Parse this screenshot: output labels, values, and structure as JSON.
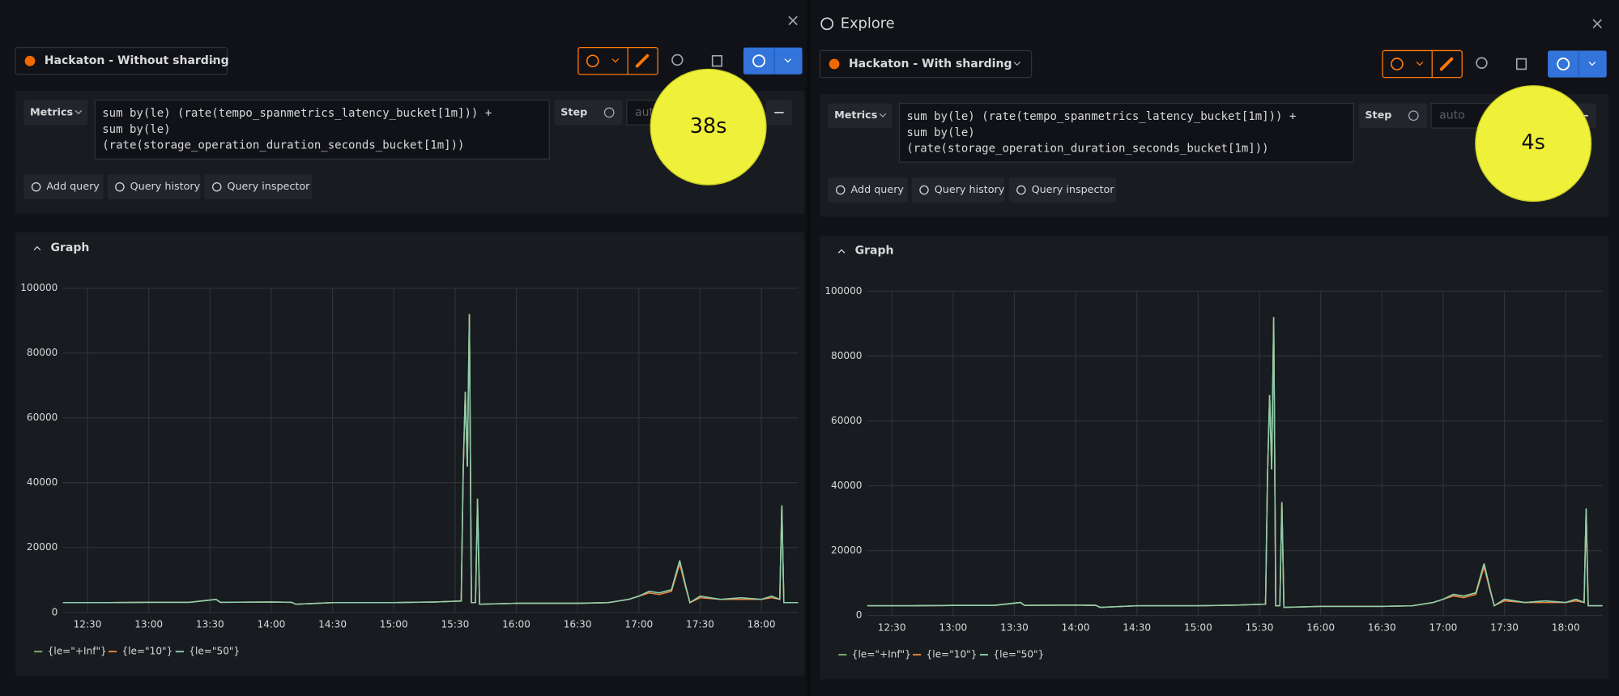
{
  "explore_title": "Explore",
  "panels": [
    {
      "datasource": "Hackaton - Without sharding",
      "query": {
        "type": "Metrics",
        "lines": [
          "sum by(le) (rate(tempo_spanmetrics_latency_bucket[1m])) +",
          "sum by(le)",
          "(rate(storage_operation_duration_seconds_bucket[1m]))"
        ],
        "step_label": "Step",
        "step_placeholder": "auto"
      },
      "actions": [
        "Add query",
        "Query history",
        "Query inspector"
      ],
      "timer": "38s",
      "chart_data": {
        "type": "line",
        "title": "Graph",
        "x": [
          "12:18",
          "12:40",
          "13:00",
          "13:20",
          "13:33",
          "13:35",
          "14:00",
          "14:10",
          "14:12",
          "14:30",
          "15:00",
          "15:20",
          "15:33",
          "15:34",
          "15:35",
          "15:36",
          "15:37",
          "15:38",
          "15:40",
          "15:41",
          "15:42",
          "16:00",
          "16:30",
          "16:45",
          "16:55",
          "17:00",
          "17:05",
          "17:10",
          "17:16",
          "17:20",
          "17:23",
          "17:25",
          "17:30",
          "17:40",
          "17:50",
          "18:00",
          "18:05",
          "18:09",
          "18:10",
          "18:11",
          "18:18"
        ],
        "series": [
          {
            "name": "{le=\"+Inf\"}",
            "color": "#7eb26d",
            "values": [
              3000,
              3000,
              3100,
              3100,
              4000,
              3100,
              3200,
              3100,
              2500,
              3000,
              3000,
              3200,
              3500,
              44000,
              68000,
              45000,
              92000,
              3000,
              3000,
              35000,
              2500,
              2800,
              2800,
              3000,
              4000,
              5000,
              6500,
              6000,
              7000,
              16000,
              8000,
              3000,
              5000,
              4000,
              4500,
              4000,
              5000,
              4000,
              33000,
              3000,
              3000
            ]
          },
          {
            "name": "{le=\"10\"}",
            "color": "#ef843c",
            "values": [
              3000,
              3000,
              3100,
              3100,
              4000,
              3100,
              3200,
              3100,
              2500,
              3000,
              3000,
              3200,
              3500,
              44000,
              68000,
              45000,
              92000,
              3000,
              3000,
              35000,
              2500,
              2800,
              2800,
              3000,
              4000,
              5000,
              6000,
              5500,
              6500,
              15000,
              7500,
              3000,
              4500,
              4000,
              4000,
              4000,
              4500,
              4000,
              33000,
              3000,
              3000
            ]
          },
          {
            "name": "{le=\"50\"}",
            "color": "#8ccfb0",
            "values": [
              3000,
              3000,
              3100,
              3100,
              4000,
              3100,
              3200,
              3100,
              2500,
              3000,
              3000,
              3200,
              3500,
              44000,
              68000,
              45000,
              92000,
              3000,
              3000,
              35000,
              2500,
              2800,
              2800,
              3000,
              4000,
              5000,
              6500,
              6000,
              7000,
              16000,
              8000,
              3000,
              5000,
              4000,
              4500,
              4000,
              5000,
              4000,
              33000,
              3000,
              3000
            ]
          }
        ],
        "xlim": [
          "12:18",
          "18:18"
        ],
        "xticks": [
          "12:30",
          "13:00",
          "13:30",
          "14:00",
          "14:30",
          "15:00",
          "15:30",
          "16:00",
          "16:30",
          "17:00",
          "17:30",
          "18:00"
        ],
        "ylim": [
          0,
          100000
        ],
        "yticks": [
          0,
          20000,
          40000,
          60000,
          80000,
          100000
        ],
        "grid": true
      }
    },
    {
      "datasource": "Hackaton - With sharding",
      "query": {
        "type": "Metrics",
        "lines": [
          "sum by(le) (rate(tempo_spanmetrics_latency_bucket[1m])) +",
          "sum by(le)",
          "(rate(storage_operation_duration_seconds_bucket[1m]))"
        ],
        "step_label": "Step",
        "step_placeholder": "auto"
      },
      "actions": [
        "Add query",
        "Query history",
        "Query inspector"
      ],
      "timer": "4s",
      "chart_data": {
        "type": "line",
        "title": "Graph",
        "x": [
          "12:18",
          "12:40",
          "13:00",
          "13:20",
          "13:33",
          "13:35",
          "14:00",
          "14:10",
          "14:12",
          "14:30",
          "15:00",
          "15:20",
          "15:33",
          "15:34",
          "15:35",
          "15:36",
          "15:37",
          "15:38",
          "15:40",
          "15:41",
          "15:42",
          "16:00",
          "16:30",
          "16:45",
          "16:55",
          "17:00",
          "17:05",
          "17:10",
          "17:16",
          "17:20",
          "17:23",
          "17:25",
          "17:30",
          "17:40",
          "17:50",
          "18:00",
          "18:05",
          "18:09",
          "18:10",
          "18:11",
          "18:18"
        ],
        "series": [
          {
            "name": "{le=\"+Inf\"}",
            "color": "#7eb26d",
            "values": [
              3000,
              3000,
              3100,
              3100,
              4000,
              3100,
              3200,
              3100,
              2500,
              3000,
              3000,
              3200,
              3500,
              44000,
              68000,
              45000,
              92000,
              3000,
              3000,
              35000,
              2500,
              2800,
              2800,
              3000,
              4000,
              5000,
              6500,
              6000,
              7000,
              16000,
              8000,
              3000,
              5000,
              4000,
              4500,
              4000,
              5000,
              4000,
              33000,
              3000,
              3000
            ]
          },
          {
            "name": "{le=\"10\"}",
            "color": "#ef843c",
            "values": [
              3000,
              3000,
              3100,
              3100,
              4000,
              3100,
              3200,
              3100,
              2500,
              3000,
              3000,
              3200,
              3500,
              44000,
              68000,
              45000,
              92000,
              3000,
              3000,
              35000,
              2500,
              2800,
              2800,
              3000,
              4000,
              5000,
              6000,
              5500,
              6500,
              15000,
              7500,
              3000,
              4500,
              4000,
              4000,
              4000,
              4500,
              4000,
              33000,
              3000,
              3000
            ]
          },
          {
            "name": "{le=\"50\"}",
            "color": "#8ccfb0",
            "values": [
              3000,
              3000,
              3100,
              3100,
              4000,
              3100,
              3200,
              3100,
              2500,
              3000,
              3000,
              3200,
              3500,
              44000,
              68000,
              45000,
              92000,
              3000,
              3000,
              35000,
              2500,
              2800,
              2800,
              3000,
              4000,
              5000,
              6500,
              6000,
              7000,
              16000,
              8000,
              3000,
              5000,
              4000,
              4500,
              4000,
              5000,
              4000,
              33000,
              3000,
              3000
            ]
          }
        ],
        "xlim": [
          "12:18",
          "18:18"
        ],
        "xticks": [
          "12:30",
          "13:00",
          "13:30",
          "14:00",
          "14:30",
          "15:00",
          "15:30",
          "16:00",
          "16:30",
          "17:00",
          "17:30",
          "18:00"
        ],
        "ylim": [
          0,
          100000
        ],
        "yticks": [
          0,
          20000,
          40000,
          60000,
          80000,
          100000
        ],
        "grid": true
      }
    }
  ]
}
